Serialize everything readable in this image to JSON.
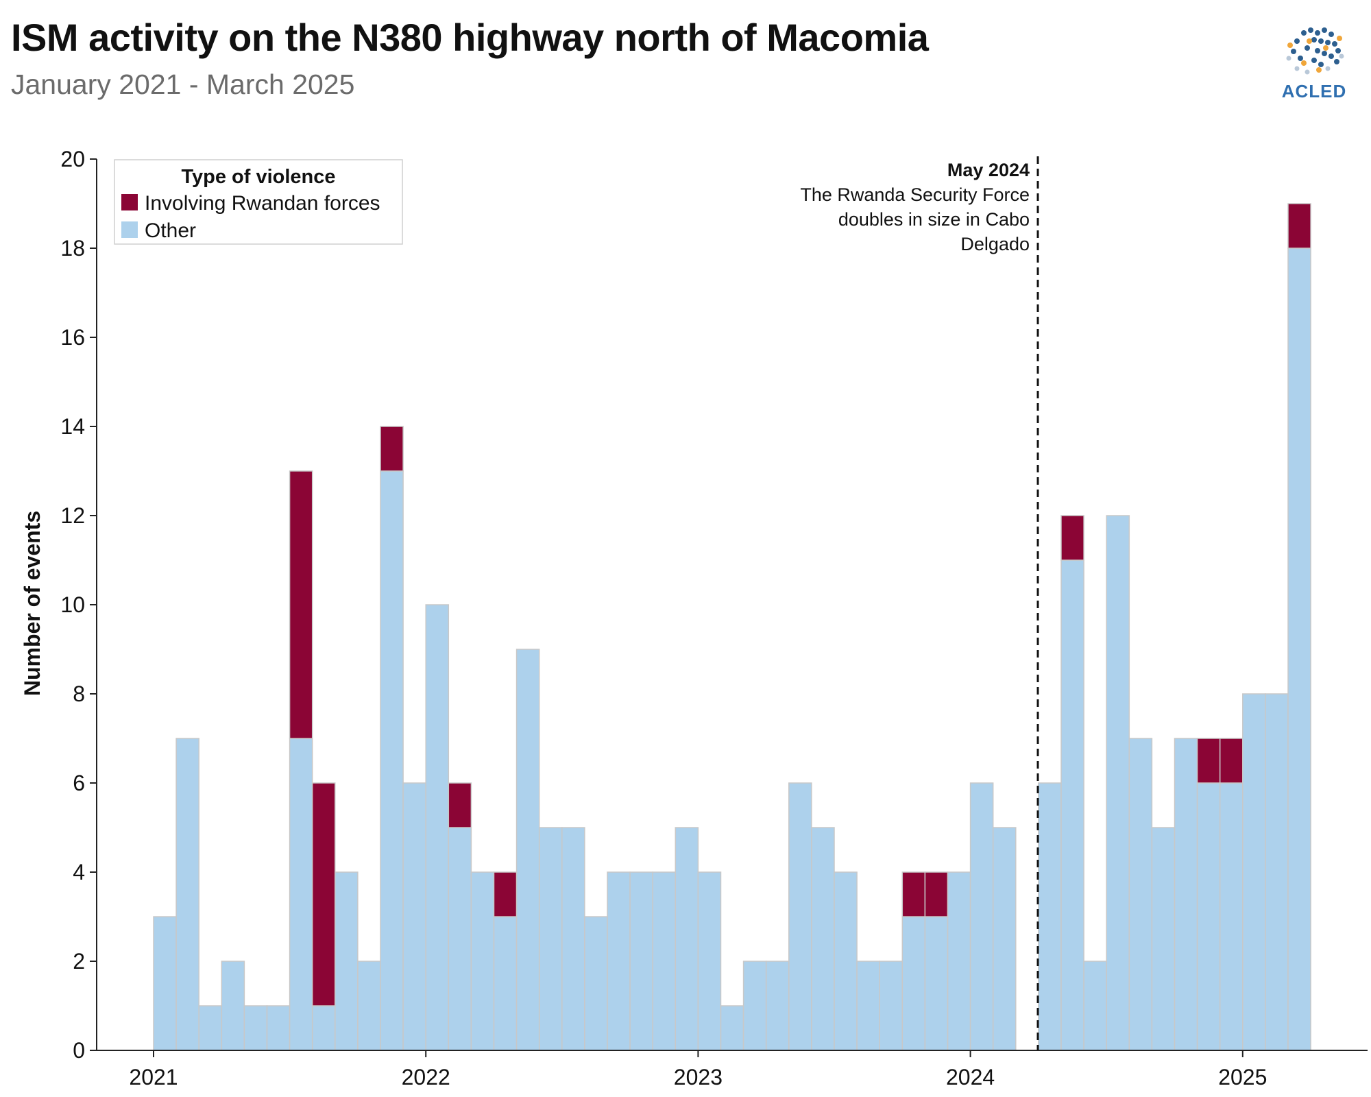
{
  "header": {
    "title": "ISM activity on the N380 highway north of Macomia",
    "subtitle": "January 2021 - March 2025",
    "logo_text": "ACLED"
  },
  "colors": {
    "rwandan": "#8b0535",
    "other": "#add1ec",
    "bar_stroke": "#c8c8c8",
    "axis": "#222222"
  },
  "chart_data": {
    "type": "bar",
    "stacked": true,
    "title": "ISM activity on the N380 highway north of Macomia",
    "subtitle": "January 2021 - March 2025",
    "xlabel": "",
    "ylabel": "Number of events",
    "ylim": [
      0,
      20
    ],
    "yticks": [
      0,
      2,
      4,
      6,
      8,
      10,
      12,
      14,
      16,
      18,
      20
    ],
    "xticks": [
      "2021",
      "2022",
      "2023",
      "2024",
      "2025"
    ],
    "legend": {
      "title": "Type of violence",
      "position": "top-left",
      "items": [
        {
          "label": "Involving Rwandan forces",
          "color_key": "rwandan"
        },
        {
          "label": "Other",
          "color_key": "other"
        }
      ]
    },
    "categories": [
      "2021-01",
      "2021-02",
      "2021-03",
      "2021-04",
      "2021-05",
      "2021-06",
      "2021-07",
      "2021-08",
      "2021-09",
      "2021-10",
      "2021-11",
      "2021-12",
      "2022-01",
      "2022-02",
      "2022-03",
      "2022-04",
      "2022-05",
      "2022-06",
      "2022-07",
      "2022-08",
      "2022-09",
      "2022-10",
      "2022-11",
      "2022-12",
      "2023-01",
      "2023-02",
      "2023-03",
      "2023-04",
      "2023-05",
      "2023-06",
      "2023-07",
      "2023-08",
      "2023-09",
      "2023-10",
      "2023-11",
      "2023-12",
      "2024-01",
      "2024-02",
      "2024-03",
      "2024-04",
      "2024-05",
      "2024-06",
      "2024-07",
      "2024-08",
      "2024-09",
      "2024-10",
      "2024-11",
      "2024-12",
      "2025-01",
      "2025-02",
      "2025-03"
    ],
    "series": [
      {
        "name": "Other",
        "color_key": "other",
        "values": [
          3,
          7,
          1,
          2,
          1,
          1,
          7,
          1,
          4,
          2,
          13,
          6,
          10,
          5,
          4,
          3,
          9,
          5,
          5,
          3,
          4,
          4,
          4,
          5,
          4,
          1,
          2,
          2,
          6,
          5,
          4,
          2,
          2,
          3,
          3,
          4,
          6,
          5,
          0,
          6,
          11,
          2,
          12,
          7,
          5,
          7,
          6,
          6,
          8,
          8,
          18
        ]
      },
      {
        "name": "Involving Rwandan forces",
        "color_key": "rwandan",
        "values": [
          0,
          0,
          0,
          0,
          0,
          0,
          6,
          5,
          0,
          0,
          1,
          0,
          0,
          1,
          0,
          1,
          0,
          0,
          0,
          0,
          0,
          0,
          0,
          0,
          0,
          0,
          0,
          0,
          0,
          0,
          0,
          0,
          0,
          1,
          1,
          0,
          0,
          0,
          0,
          0,
          1,
          0,
          0,
          0,
          0,
          0,
          1,
          1,
          0,
          0,
          1
        ]
      }
    ],
    "annotation": {
      "date": "2024-04",
      "title": "May 2024",
      "lines": [
        "The Rwanda Security Force",
        "doubles in size in Cabo",
        "Delgado"
      ]
    }
  }
}
